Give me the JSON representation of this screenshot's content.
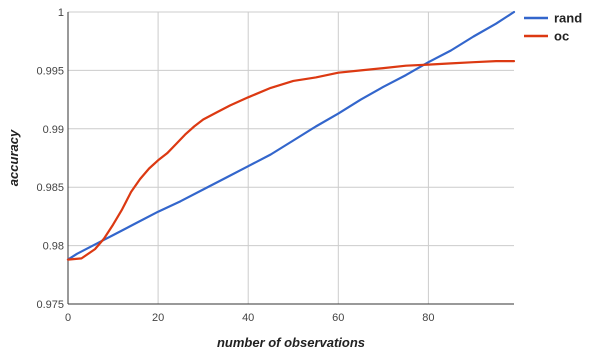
{
  "chart_data": {
    "type": "line",
    "title": "",
    "xlabel": "number of observations",
    "ylabel": "accuracy",
    "xlim": [
      0,
      99
    ],
    "ylim": [
      0.975,
      1
    ],
    "x_ticks": [
      0,
      20,
      40,
      60,
      80
    ],
    "x_tick_labels": [
      "0",
      "20",
      "40",
      "60",
      "80"
    ],
    "y_ticks": [
      0.975,
      0.98,
      0.985,
      0.99,
      0.995,
      1
    ],
    "y_tick_labels": [
      "0.975",
      "0.98",
      "0.985",
      "0.99",
      "0.995",
      "1"
    ],
    "grid": true,
    "legend_position": "right",
    "series": [
      {
        "name": "rand",
        "color": "#3366cc",
        "x": [
          0,
          2,
          5,
          8,
          10,
          15,
          20,
          25,
          30,
          35,
          40,
          45,
          50,
          55,
          60,
          65,
          70,
          75,
          80,
          85,
          90,
          95,
          99
        ],
        "y": [
          0.9788,
          0.9793,
          0.9799,
          0.9805,
          0.9809,
          0.9819,
          0.9829,
          0.9838,
          0.9848,
          0.9858,
          0.9868,
          0.9878,
          0.989,
          0.9902,
          0.9913,
          0.9925,
          0.9936,
          0.9946,
          0.9957,
          0.9967,
          0.9979,
          0.999,
          1.0
        ]
      },
      {
        "name": "oc",
        "color": "#dc3912",
        "x": [
          0,
          3,
          6,
          8,
          10,
          12,
          14,
          16,
          18,
          20,
          22,
          24,
          26,
          28,
          30,
          33,
          36,
          40,
          45,
          50,
          55,
          60,
          65,
          70,
          75,
          80,
          85,
          90,
          95,
          99
        ],
        "y": [
          0.9788,
          0.9789,
          0.9797,
          0.9806,
          0.9818,
          0.9831,
          0.9846,
          0.9857,
          0.9866,
          0.9873,
          0.9879,
          0.9887,
          0.9895,
          0.9902,
          0.9908,
          0.9914,
          0.992,
          0.9927,
          0.9935,
          0.9941,
          0.9944,
          0.9948,
          0.995,
          0.9952,
          0.9954,
          0.9955,
          0.9956,
          0.9957,
          0.9958,
          0.9958
        ]
      }
    ]
  }
}
